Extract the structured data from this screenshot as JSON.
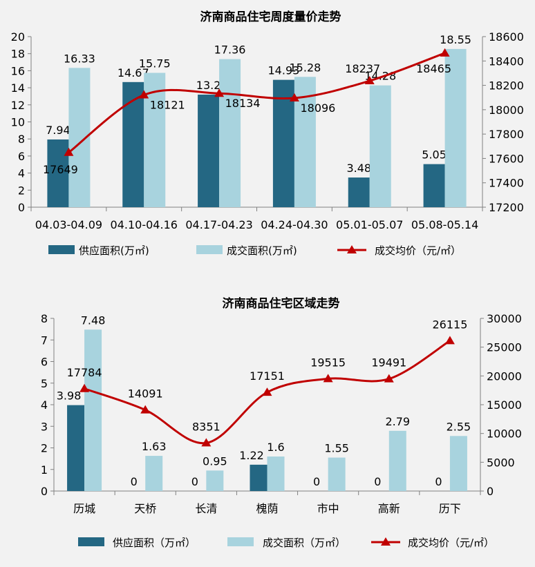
{
  "chart_data": [
    {
      "type": "bar",
      "title": "济南商品住宅周度量价走势",
      "categories": [
        "04.03-04.09",
        "04.10-04.16",
        "04.17-04.23",
        "04.24-04.30",
        "05.01-05.07",
        "05.08-05.14"
      ],
      "series": [
        {
          "name": "供应面积(万㎡)",
          "type": "bar",
          "axis": "left",
          "color": "#246783",
          "values": [
            7.94,
            14.67,
            13.2,
            14.93,
            3.48,
            5.05
          ]
        },
        {
          "name": "成交面积(万㎡)",
          "type": "bar",
          "axis": "left",
          "color": "#a8d3de",
          "values": [
            16.33,
            15.75,
            17.36,
            15.28,
            14.28,
            18.55
          ]
        },
        {
          "name": "成交均价（元/㎡）",
          "type": "line",
          "axis": "right",
          "color": "#c00000",
          "values": [
            17649,
            18121,
            18134,
            18096,
            18237,
            18465
          ]
        }
      ],
      "yleft": {
        "min": 0,
        "max": 20,
        "step": 2
      },
      "yright": {
        "min": 17200,
        "max": 18600,
        "step": 200
      },
      "grid": false,
      "legend": "bottom"
    },
    {
      "type": "bar",
      "title": "济南商品住宅区域走势",
      "categories": [
        "历城",
        "天桥",
        "长清",
        "槐荫",
        "市中",
        "高新",
        "历下"
      ],
      "series": [
        {
          "name": "供应面积（万㎡）",
          "type": "bar",
          "axis": "left",
          "color": "#246783",
          "values": [
            3.98,
            0,
            0,
            1.22,
            0,
            0,
            0
          ]
        },
        {
          "name": "成交面积（万㎡）",
          "type": "bar",
          "axis": "left",
          "color": "#a8d3de",
          "values": [
            7.48,
            1.63,
            0.95,
            1.6,
            1.55,
            2.79,
            2.55
          ]
        },
        {
          "name": "成交均价（元/㎡）",
          "type": "line",
          "axis": "right",
          "color": "#c00000",
          "values": [
            17784,
            14091,
            8351,
            17151,
            19515,
            19491,
            26115
          ]
        }
      ],
      "yleft": {
        "min": 0,
        "max": 8,
        "step": 1
      },
      "yright": {
        "min": 0,
        "max": 30000,
        "step": 5000
      },
      "grid": false,
      "legend": "bottom"
    }
  ]
}
